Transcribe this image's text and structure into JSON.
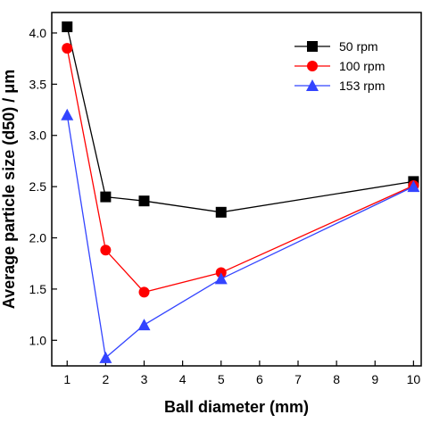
{
  "chart_data": {
    "type": "line",
    "xlabel": "Ball diameter (mm)",
    "ylabel": "Average particle size (d50) / μm",
    "x_categories": [
      "1",
      "2",
      "3",
      "4",
      "5",
      "6",
      "7",
      "8",
      "9",
      "10"
    ],
    "x": [
      1,
      2,
      3,
      5,
      10
    ],
    "yticks": [
      "1.0",
      "1.5",
      "2.0",
      "2.5",
      "3.0",
      "3.5",
      "4.0"
    ],
    "ylim": [
      0.75,
      4.2
    ],
    "legend_position": "top-right",
    "grid": false,
    "series": [
      {
        "name": "50 rpm",
        "marker": "square",
        "color": "#000000",
        "values": [
          4.06,
          2.4,
          2.36,
          2.25,
          2.55
        ]
      },
      {
        "name": "100 rpm",
        "marker": "circle",
        "color": "#ff0000",
        "values": [
          3.85,
          1.88,
          1.47,
          1.66,
          2.51
        ]
      },
      {
        "name": "153 rpm",
        "marker": "triangle",
        "color": "#3344ff",
        "values": [
          3.2,
          0.83,
          1.15,
          1.6,
          2.5
        ]
      }
    ]
  }
}
